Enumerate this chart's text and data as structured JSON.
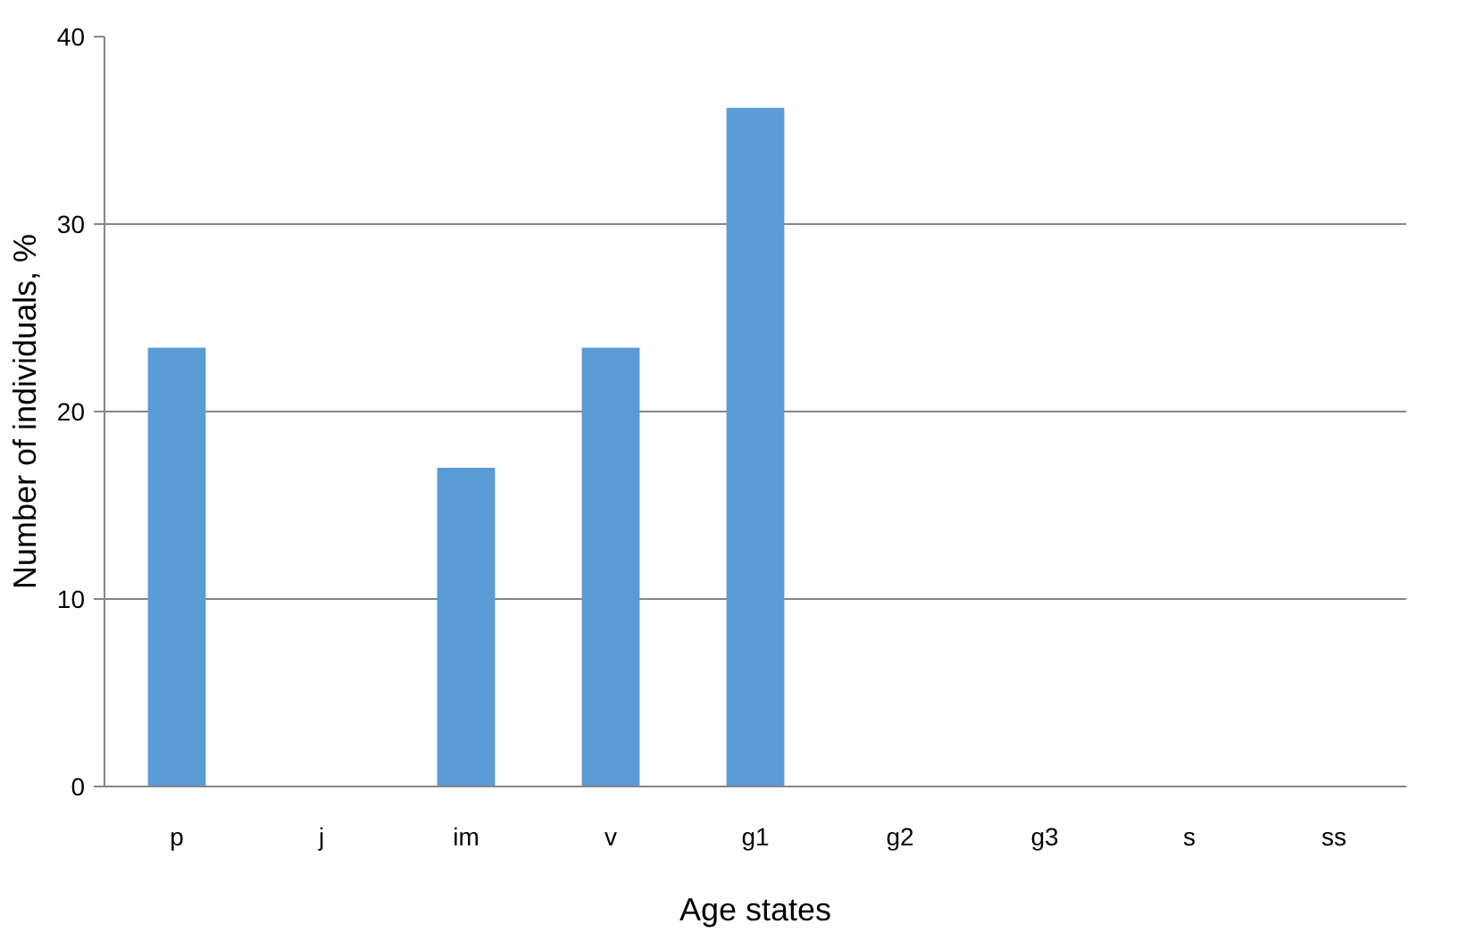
{
  "chart_data": {
    "type": "bar",
    "xlabel": "Age states",
    "ylabel": "Number of individuals, %",
    "categories": [
      "p",
      "j",
      "im",
      "v",
      "g1",
      "g2",
      "g3",
      "s",
      "ss"
    ],
    "values": [
      23.4,
      0,
      17.0,
      23.4,
      36.2,
      0,
      0,
      0,
      0
    ],
    "color": "#5b9bd5",
    "ylim": [
      0,
      40
    ],
    "yticks": [
      0,
      10,
      20,
      30,
      40
    ],
    "grid": "y"
  }
}
